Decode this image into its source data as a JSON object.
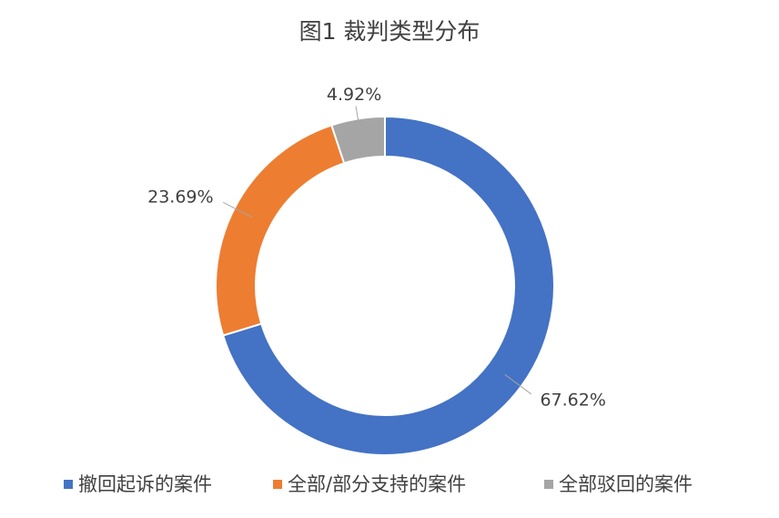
{
  "chart_data": {
    "type": "donut",
    "title": "图1 裁判类型分布",
    "categories": [
      "撤回起诉的案件",
      "全部/部分支持的案件",
      "全部驳回的案件"
    ],
    "values": [
      67.62,
      23.69,
      4.92
    ],
    "value_labels": [
      "67.62%",
      "23.69%",
      "4.92%"
    ],
    "colors": [
      "#4472c4",
      "#ed7d31",
      "#a5a5a5"
    ],
    "legend": "bottom"
  }
}
